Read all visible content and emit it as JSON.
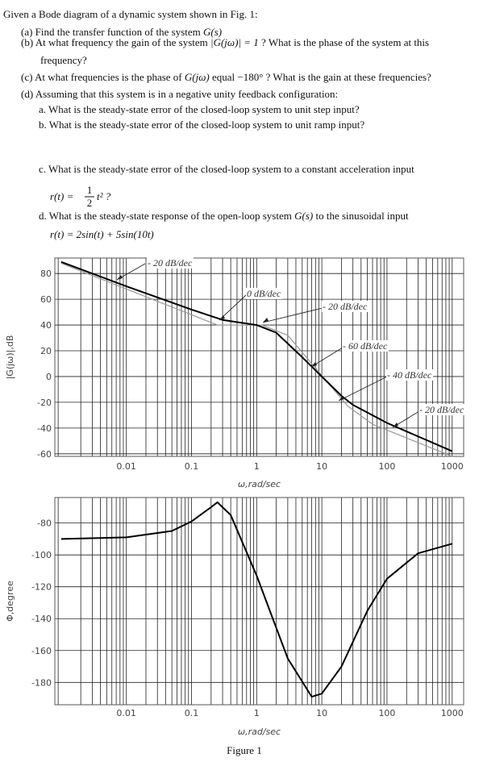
{
  "document": {
    "intro": "Given a Bode diagram of a dynamic system shown in Fig. 1:",
    "a": [
      "(a) Find the transfer function of the system ",
      "G(s)"
    ],
    "b": [
      "(b) At what frequency the gain of the system ",
      "|G(jω)| = 1",
      " ? What is the phase of the system at this"
    ],
    "b2": "frequency?",
    "c": [
      "(c) At what frequencies is the phase of ",
      "G(jω)",
      " equal −180° ? What is the gain at these frequencies?"
    ],
    "d": "(d) Assuming that this system is in a negative unity feedback configuration:",
    "da": "a.   What is the steady-state error of the closed-loop system to unit step input?",
    "db": "b.   What is the steady-state error of the closed-loop system to unit ramp input?",
    "dc": "c.   What is the steady-state error of the closed-loop system to a constant acceleration input",
    "dc_eq": [
      "r(t) =",
      "1",
      "2",
      "t² ?"
    ],
    "dd": [
      "d.   What is the steady-state response of the open-loop system ",
      "G(s)",
      " to the sinusoidal input"
    ],
    "dd_eq": "r(t) = 2sin(t) + 5sin(10t)",
    "caption": "Figure 1"
  },
  "chart_data": [
    {
      "type": "line",
      "xscale": "log",
      "grid": true,
      "xlabel": "ω,rad/sec",
      "ylabel": "|G(jω)|,dB",
      "xlim": [
        0.0008,
        1500
      ],
      "ylim": [
        -62,
        92
      ],
      "xticks": [
        0.01,
        0.1,
        1,
        10,
        100,
        1000
      ],
      "yticks": [
        -60,
        -40,
        -20,
        0,
        20,
        40,
        60,
        80
      ],
      "series": [
        {
          "color": "#999999",
          "x": [
            0.001,
            0.25,
            1.2,
            3,
            25,
            60,
            1000
          ],
          "values": [
            88,
            40,
            40,
            32,
            -23,
            -37,
            -62
          ]
        },
        {
          "color": "#000000",
          "x": [
            0.001,
            0.01,
            0.1,
            0.3,
            1,
            2,
            5,
            10,
            20,
            30,
            100,
            1000
          ],
          "values": [
            89,
            70,
            52,
            44,
            40,
            34,
            15,
            0,
            -15,
            -22,
            -36,
            -58
          ]
        }
      ],
      "annotations": [
        "- 20 dB/dec",
        "0 dB/dec",
        "- 20 dB/dec",
        "- 60 dB/dec",
        "- 40 dB/dec",
        "- 20 dB/dec"
      ]
    },
    {
      "type": "line",
      "xscale": "log",
      "grid": true,
      "xlabel": "ω,rad/sec",
      "ylabel": "Φ,degree",
      "xlim": [
        0.0008,
        1500
      ],
      "ylim": [
        -194,
        -64
      ],
      "xticks": [
        0.01,
        0.1,
        1,
        10,
        100,
        1000
      ],
      "yticks": [
        -180,
        -160,
        -140,
        -120,
        -100,
        -80
      ],
      "series": [
        {
          "color": "#000000",
          "x": [
            0.001,
            0.01,
            0.05,
            0.1,
            0.2,
            0.25,
            0.4,
            1,
            3,
            7,
            10,
            20,
            50,
            100,
            300,
            1000
          ],
          "values": [
            -90,
            -89,
            -85,
            -79,
            -70,
            -67,
            -75,
            -113,
            -165,
            -189,
            -187,
            -170,
            -135,
            -115,
            -99,
            -93
          ]
        }
      ]
    }
  ]
}
